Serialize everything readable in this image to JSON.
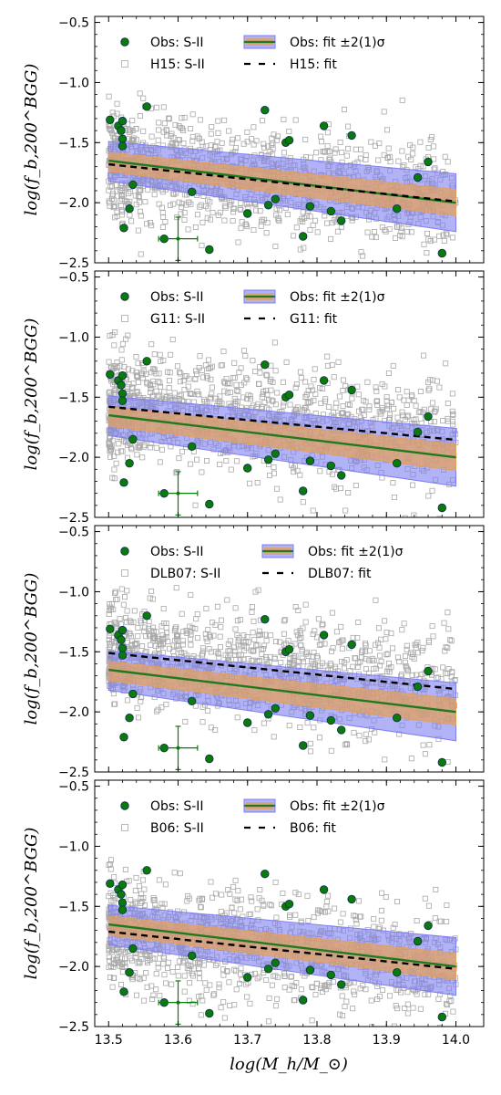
{
  "colors": {
    "obs_fill": "#0a7a0a",
    "obs_edge": "#0b2a55",
    "sim_edge": "#a8a8a8",
    "fit_line": "#1f7a1f",
    "band_2sigma": "#7f7ff2",
    "band_1sigma": "#e0a060",
    "sim_fit": "#000000"
  },
  "xlabel": "log(M_h/M_⊙)",
  "ylabel": "log(f_b,200^BGG)",
  "chart_data": [
    {
      "type": "scatter",
      "panel": "H15",
      "xlim": [
        13.48,
        14.04
      ],
      "ylim": [
        -2.5,
        -0.45
      ],
      "x_ticks": [
        "13.5",
        "13.6",
        "13.7",
        "13.8",
        "13.9",
        "14.0"
      ],
      "y_ticks": [
        "-0.5",
        "-1.0",
        "-1.5",
        "-2.0",
        "-2.5"
      ],
      "legend": [
        "Obs: S-II",
        "H15: S-II",
        "Obs: fit ±2(1)σ",
        "H15: fit"
      ],
      "legend_placement": "top",
      "sim_fit": {
        "intercept": -1.68,
        "slope": -0.62
      }
    },
    {
      "type": "scatter",
      "panel": "G11",
      "xlim": [
        13.48,
        14.04
      ],
      "ylim": [
        -2.5,
        -0.45
      ],
      "x_ticks": [
        "13.5",
        "13.6",
        "13.7",
        "13.8",
        "13.9",
        "14.0"
      ],
      "y_ticks": [
        "-0.5",
        "-1.0",
        "-1.5",
        "-2.0",
        "-2.5"
      ],
      "legend": [
        "Obs: S-II",
        "G11: S-II",
        "Obs: fit ±2(1)σ",
        "G11: fit"
      ],
      "legend_placement": "top",
      "sim_fit": {
        "intercept": -1.58,
        "slope": -0.55
      }
    },
    {
      "type": "scatter",
      "panel": "DLB07",
      "xlim": [
        13.48,
        14.04
      ],
      "ylim": [
        -2.5,
        -0.45
      ],
      "x_ticks": [
        "13.5",
        "13.6",
        "13.7",
        "13.8",
        "13.9",
        "14.0"
      ],
      "y_ticks": [
        "-0.5",
        "-1.0",
        "-1.5",
        "-2.0",
        "-2.5"
      ],
      "legend": [
        "Obs: S-II",
        "DLB07: S-II",
        "Obs: fit ±2(1)σ",
        "DLB07: fit"
      ],
      "legend_placement": "top",
      "sim_fit": {
        "intercept": -1.51,
        "slope": -0.6
      }
    },
    {
      "type": "scatter",
      "panel": "B06",
      "xlim": [
        13.48,
        14.04
      ],
      "ylim": [
        -2.5,
        -0.45
      ],
      "x_ticks": [
        "13.5",
        "13.6",
        "13.7",
        "13.8",
        "13.9",
        "14.0"
      ],
      "y_ticks": [
        "-0.5",
        "-1.0",
        "-1.5",
        "-2.0",
        "-2.5"
      ],
      "legend": [
        "Obs: S-II",
        "B06: S-II",
        "Obs: fit ±2(1)σ",
        "B06: fit"
      ],
      "legend_placement": "top",
      "sim_fit": {
        "intercept": -1.71,
        "slope": -0.62
      }
    }
  ],
  "obs_fit": {
    "intercept": -1.65,
    "slope": -0.7,
    "band_1sigma": [
      [
        13.5,
        -1.58,
        -1.74
      ],
      [
        14.0,
        -1.89,
        -2.11
      ]
    ],
    "band_2sigma": [
      [
        13.5,
        -1.49,
        -1.82
      ],
      [
        14.0,
        -1.76,
        -2.24
      ]
    ]
  },
  "obs_points": [
    [
      13.502,
      -1.31
    ],
    [
      13.514,
      -1.36
    ],
    [
      13.52,
      -1.32
    ],
    [
      13.518,
      -1.4
    ],
    [
      13.52,
      -1.47
    ],
    [
      13.52,
      -1.53
    ],
    [
      13.522,
      -2.21
    ],
    [
      13.53,
      -2.05
    ],
    [
      13.535,
      -1.85
    ],
    [
      13.555,
      -1.2
    ],
    [
      13.58,
      -2.3
    ],
    [
      13.62,
      -1.91
    ],
    [
      13.645,
      -2.39
    ],
    [
      13.7,
      -2.09
    ],
    [
      13.725,
      -1.23
    ],
    [
      13.73,
      -2.02
    ],
    [
      13.74,
      -1.97
    ],
    [
      13.755,
      -1.5
    ],
    [
      13.76,
      -1.48
    ],
    [
      13.78,
      -2.28
    ],
    [
      13.79,
      -2.03
    ],
    [
      13.81,
      -1.36
    ],
    [
      13.82,
      -2.07
    ],
    [
      13.835,
      -2.15
    ],
    [
      13.85,
      -1.44
    ],
    [
      13.915,
      -2.05
    ],
    [
      13.945,
      -1.79
    ],
    [
      13.96,
      -1.66
    ],
    [
      13.98,
      -2.42
    ]
  ],
  "typical_error": {
    "x": 13.6,
    "y": -2.3,
    "xerr": 0.028,
    "yerr": 0.18
  },
  "sim_cloud_seeds": [
    11,
    23,
    37,
    53
  ]
}
